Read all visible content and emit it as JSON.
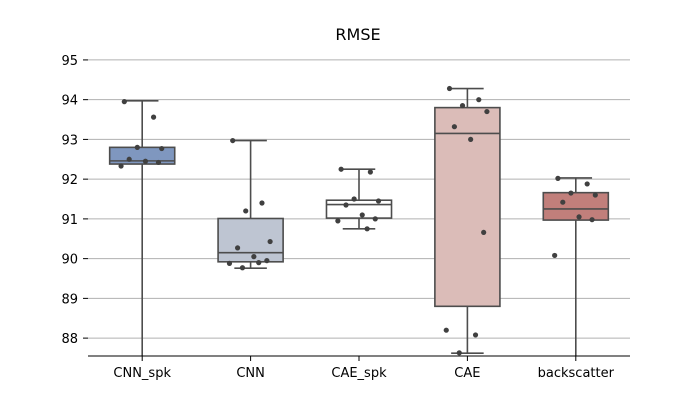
{
  "chart_data": {
    "type": "box",
    "title": "RMSE",
    "xlabel": "",
    "ylabel": "",
    "ylim": [
      87.55,
      95.3
    ],
    "yticks": [
      88,
      89,
      90,
      91,
      92,
      93,
      94,
      95
    ],
    "grid": "horizontal",
    "categories": [
      "CNN_spk",
      "CNN",
      "CAE_spk",
      "CAE",
      "backscatter"
    ],
    "colors": [
      "#7f97bf",
      "#bec5d2",
      "#ffffff",
      "#dbbcb8",
      "#c17f7b"
    ],
    "boxes": [
      {
        "category": "CNN_spk",
        "whisker_low": 87.55,
        "q1": 92.38,
        "median": 92.46,
        "q3": 92.8,
        "whisker_high": 93.97,
        "points": [
          93.95,
          93.56,
          92.8,
          92.77,
          92.5,
          92.45,
          92.42,
          92.33
        ]
      },
      {
        "category": "CNN",
        "whisker_low": 89.76,
        "q1": 89.92,
        "median": 90.15,
        "q3": 91.01,
        "whisker_high": 92.97,
        "points": [
          92.97,
          91.4,
          91.2,
          90.43,
          90.27,
          90.05,
          89.95,
          89.88,
          89.9,
          89.77
        ]
      },
      {
        "category": "CAE_spk",
        "whisker_low": 90.75,
        "q1": 91.02,
        "median": 91.36,
        "q3": 91.47,
        "whisker_high": 92.25,
        "points": [
          92.25,
          92.18,
          91.5,
          91.45,
          91.35,
          91.1,
          91.0,
          90.95,
          90.75
        ]
      },
      {
        "category": "CAE",
        "whisker_low": 87.62,
        "q1": 88.8,
        "median": 93.15,
        "q3": 93.8,
        "whisker_high": 94.28,
        "points": [
          94.28,
          94.0,
          93.85,
          93.7,
          93.32,
          93.0,
          90.66,
          88.2,
          88.08,
          87.63
        ]
      },
      {
        "category": "backscatter",
        "whisker_low": 87.55,
        "q1": 90.97,
        "median": 91.25,
        "q3": 91.66,
        "whisker_high": 92.03,
        "points": [
          92.02,
          91.88,
          91.65,
          91.6,
          91.42,
          91.05,
          90.98,
          90.08
        ]
      }
    ]
  }
}
